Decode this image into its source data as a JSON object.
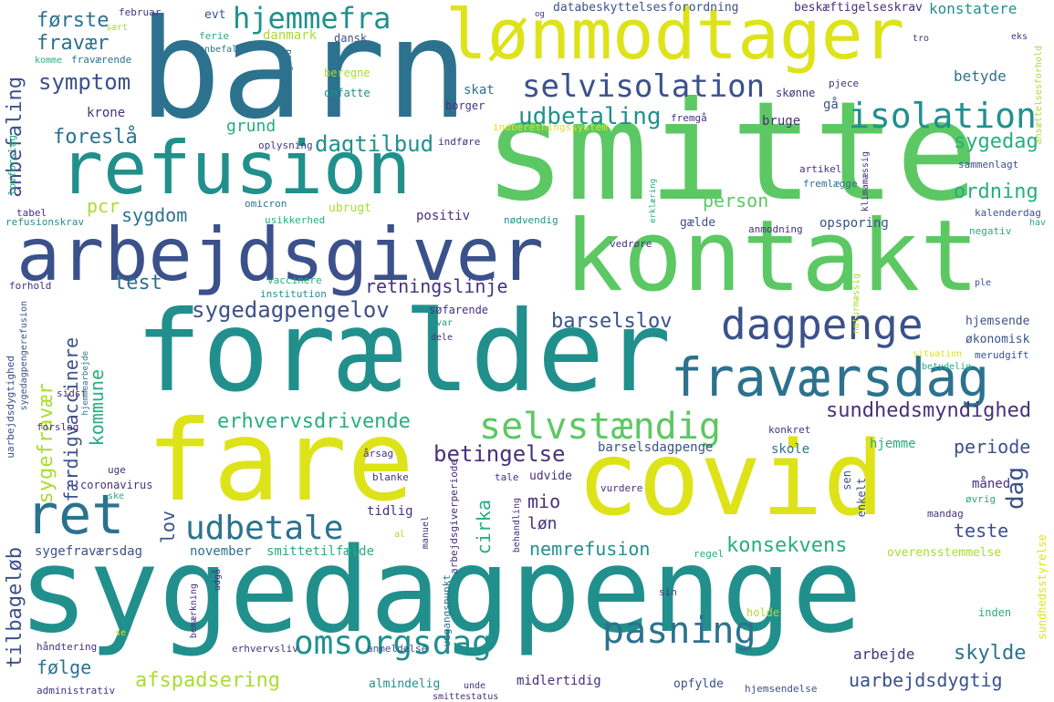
{
  "words": {
    "barn": "barn",
    "smitte": "smitte",
    "lonmodtager": "lønmodtager",
    "refusion": "refusion",
    "arbejdsgiver": "arbejdsgiver",
    "kontakt": "kontakt",
    "foraelder": "forælder",
    "fare": "fare",
    "covid": "covid",
    "sygedagpenge": "sygedagpenge",
    "dagpenge": "dagpenge",
    "fravaersdag": "fraværsdag",
    "selvstaendig": "selvstændig",
    "ret": "ret",
    "udbetale": "udbetale",
    "omsorgsdag": "omsorgsdag",
    "pasning": "pasning",
    "selvisolation": "selvisolation",
    "isolation": "isolation",
    "hjemmefra": "hjemmefra",
    "forste": "første",
    "fravaer": "fravær",
    "symptom": "symptom",
    "udbetaling": "udbetaling",
    "dagtilbud": "dagtilbud",
    "foreslaa": "foreslå",
    "sygedag": "sygedag",
    "ordning": "ordning",
    "sygedagpengelov": "sygedagpengelov",
    "barselslov": "barselslov",
    "erhvervsdrivende": "erhvervsdrivende",
    "betingelse": "betingelse",
    "sundhedsmyndighed": "sundhedsmyndighed",
    "retningslinje": "retningslinje",
    "test": "test",
    "sygdom": "sygdom",
    "pcr": "pcr",
    "person": "person",
    "anbefaling": "anbefaling",
    "tilbagelob": "tilbageløb",
    "sygefravaer": "sygefravær",
    "faerdigvaccinere": "færdigvaccinere",
    "kommune": "kommune",
    "lov": "lov",
    "folge": "følge",
    "afspadsering": "afspadsering",
    "mio": "mio",
    "lon": "løn",
    "cirka": "cirka",
    "nemrefusion": "nemrefusion",
    "konsekvens": "konsekvens",
    "teste": "teste",
    "periode": "periode",
    "dag": "dag",
    "skylde": "skylde",
    "uarbejdsdygtig": "uarbejdsdygtig",
    "arbejde": "arbejde",
    "krone": "krone",
    "grund": "grund",
    "skat": "skat",
    "betyde": "betyde",
    "konstatere": "konstatere",
    "databeskyttelsesforordning": "databeskyttelsesforordning",
    "beskaeftigelseskrav": "beskæftigelseskrav",
    "danmark": "danmark",
    "dansk": "dansk",
    "evt": "evt",
    "februar": "februar",
    "ferie": "ferie",
    "saert": "sært",
    "fravaerende": "fraværende",
    "komme": "komme",
    "beregne": "beregne",
    "omfatte": "omfatte",
    "borger": "borger",
    "bruge": "bruge",
    "gaa": "gå",
    "skonne": "skønne",
    "pjece": "pjece",
    "oplysning": "oplysning",
    "indfore": "indføre",
    "fremgaa": "fremgå",
    "indberetningssystem": "indberetningssystem",
    "lovforslag": "lovforslag",
    "tabel": "tabel",
    "refusionskrav": "refusionskrav",
    "omicron": "omicron",
    "ubrugt": "ubrugt",
    "usikkerhed": "usikkerhed",
    "positiv": "positiv",
    "nodvendig": "nødvendig",
    "gaelde": "gælde",
    "anmodning": "anmodning",
    "opsporing": "opsporing",
    "kalenderdag": "kalenderdag",
    "negativ": "negativ",
    "hav": "hav",
    "ple": "ple",
    "vedrore": "vedrøre",
    "artikel": "artikel",
    "fremlaegge": "fremlægge",
    "sammenlagt": "sammenlagt",
    "tro": "tro",
    "eks": "eks",
    "forhold": "forhold",
    "vaccinere": "vaccinere",
    "institution": "institution",
    "sofarende": "søfarende",
    "svar": "svar",
    "dele": "dele",
    "hjemsende": "hjemsende",
    "okonomisk": "økonomisk",
    "situation": "situation",
    "betydelig": "betydelig",
    "merudgift": "merudgift",
    "sidst": "sidst",
    "forslag": "forslag",
    "konkret": "konkret",
    "skole": "skole",
    "hjemme": "hjemme",
    "uge": "uge",
    "aarsag": "årsag",
    "coronavirus": "coronavirus",
    "udvide": "udvide",
    "vurdere": "vurdere",
    "blanke": "blanke",
    "tale": "tale",
    "maaned": "måned",
    "sen": "sen",
    "enkelt": "enkelt",
    "mandag": "mandag",
    "ovrig": "øvrig",
    "tidlig": "tidlig",
    "sygefravaersdag": "sygefraværsdag",
    "november": "november",
    "smittetilfaelde": "smittetilfælde",
    "regel": "regel",
    "overensstemmelse": "overensstemmelse",
    "barselsdagpenge": "barselsdagpenge",
    "sundhedsstyrelse": "sundhedsstyrelse",
    "ske": "ske",
    "al": "al",
    "sin": "sin",
    "holde": "holde",
    "inden": "inden",
    "se": "se",
    "haandtering": "håndtering",
    "bemaerkning": "bemærkning",
    "erhvervsliv": "erhvervsliv",
    "anmeldelse": "anmeldelse",
    "midlertidig": "midlertidig",
    "opfylde": "opfylde",
    "hjemsendelse": "hjemsendelse",
    "almindelig": "almindelig",
    "unde": "unde",
    "smittestatus": "smittestatus",
    "administrativ": "administrativ",
    "uarbejdsdygtighed": "uarbejdsdygtighed",
    "sygedagpengerefusion": "sygedagpengerefusion",
    "hjemmearbejde": "hjemmearbejde",
    "naturmaessig": "naturmæssig",
    "klimamaessig": "klimamæssig",
    "udgaa": "udgå",
    "udgangspunkt": "udgangspunkt",
    "arbejdsgiverperiode": "arbejdsgiverperiode",
    "manuel": "manuel",
    "behandling": "behandling",
    "anbefale": "anbefale",
    "mulighed": "mulighed",
    "ansaettelsesforhold": "ansættelsesforhold",
    "erklaering": "erklæring",
    "og": "og"
  },
  "colors": {
    "dark_purple": "#46317e",
    "indigo": "#3b518b",
    "blue": "#2c728e",
    "teal": "#21908d",
    "green_teal": "#27ad81",
    "green": "#5cc863",
    "lime": "#aadc32",
    "yellow": "#dde318",
    "bright_yellow": "#fde725"
  }
}
